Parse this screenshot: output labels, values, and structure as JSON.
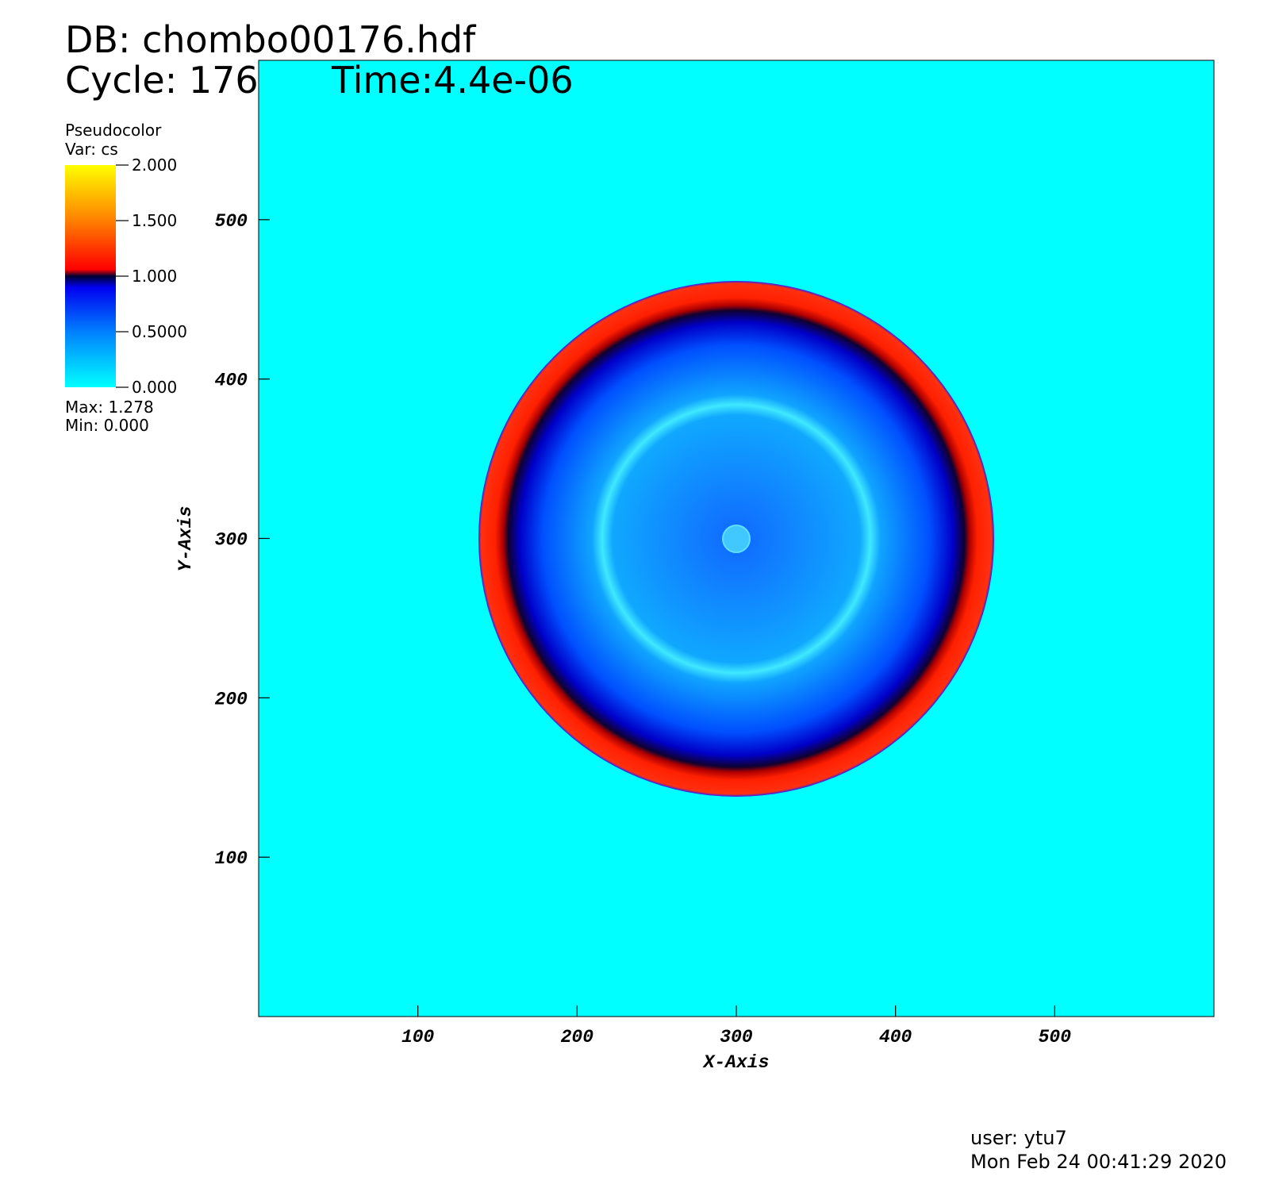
{
  "chart_data": {
    "type": "pseudocolor",
    "title": "DB: chombo00176.hdf",
    "cycle": "Cycle: 176",
    "time": "Time:4.4e-06",
    "plot_name": "Pseudocolor",
    "variable": "Var: cs",
    "max_label": "Max:  1.278",
    "min_label": "Min:  0.000",
    "x_label": "X-Axis",
    "y_label": "Y-Axis",
    "xlim": [
      0,
      600
    ],
    "ylim": [
      0,
      600
    ],
    "xticks": [
      100,
      200,
      300,
      400,
      500
    ],
    "yticks": [
      100,
      200,
      300,
      400,
      500
    ],
    "clim": [
      0,
      2
    ],
    "cticks": [
      {
        "value": 0,
        "label": "0.000"
      },
      {
        "value": 0.5,
        "label": "0.5000"
      },
      {
        "value": 1,
        "label": "1.000"
      },
      {
        "value": 1.5,
        "label": "1.500"
      },
      {
        "value": 2,
        "label": "2.000"
      }
    ],
    "user": "user: ytu7",
    "date": "Mon Feb 24 00:41:29 2020"
  }
}
